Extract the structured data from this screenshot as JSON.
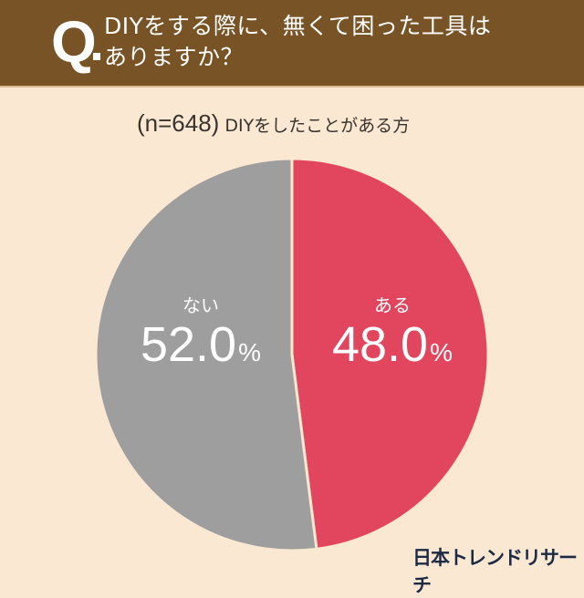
{
  "header": {
    "q_mark": "Q",
    "question_line1": "DIYをする際に、無くて困った工具は",
    "question_line2": "ありますか？"
  },
  "subtitle": {
    "sample": "(n=648)",
    "respondents": "DIYをしたことがある方"
  },
  "slices": [
    {
      "label": "ある",
      "value": "48.0",
      "unit": "%",
      "color": "#e2465f"
    },
    {
      "label": "ない",
      "value": "52.0",
      "unit": "%",
      "color": "#9e9e9e"
    }
  ],
  "brand": "日本トレンドリサーチ",
  "chart_data": {
    "type": "pie",
    "title": "DIYをする際に、無くて困った工具はありますか？",
    "subtitle": "(n=648) DIYをしたことがある方",
    "categories": [
      "ある",
      "ない"
    ],
    "values": [
      48.0,
      52.0
    ],
    "colors": [
      "#e2465f",
      "#9e9e9e"
    ],
    "unit": "%",
    "start_angle": "12 o'clock, clockwise",
    "legend": "labels inside slices"
  }
}
